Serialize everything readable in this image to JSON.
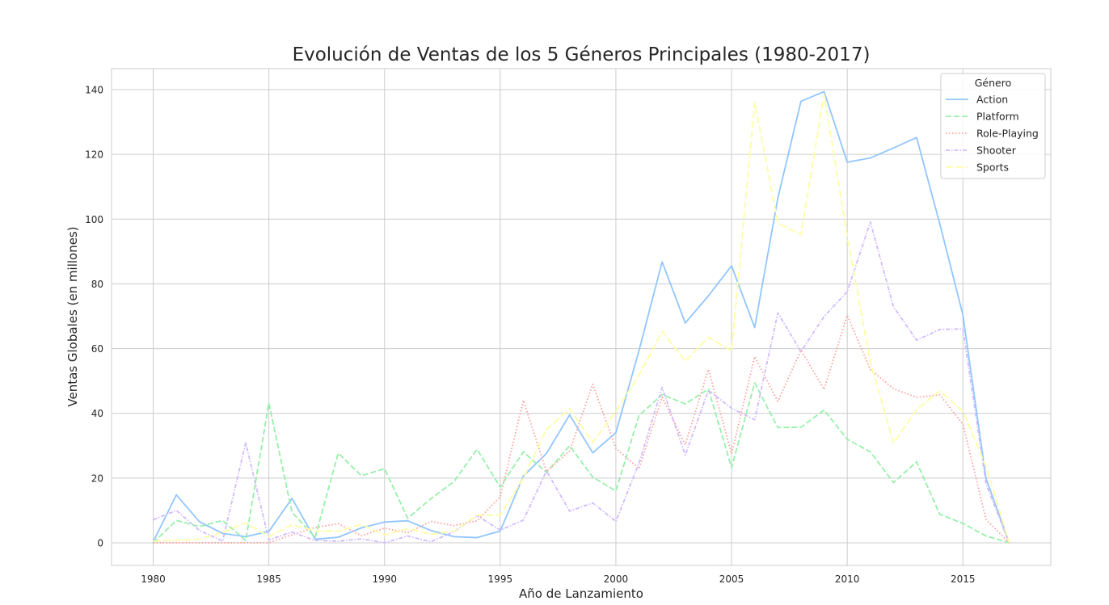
{
  "chart_data": {
    "type": "line",
    "title": "Evolución de Ventas de los 5 Géneros Principales (1980-2017)",
    "xlabel": "Año de Lanzamiento",
    "ylabel": "Ventas Globales (en millones)",
    "xlim": [
      1978.2,
      2018.8
    ],
    "ylim": [
      -7,
      146.5
    ],
    "xticks": [
      1980,
      1985,
      1990,
      1995,
      2000,
      2005,
      2010,
      2015
    ],
    "yticks": [
      0,
      20,
      40,
      60,
      80,
      100,
      120,
      140
    ],
    "grid": true,
    "legend": {
      "title": "Género",
      "placement": "top-right"
    },
    "x": [
      1980,
      1981,
      1982,
      1983,
      1984,
      1985,
      1986,
      1987,
      1988,
      1989,
      1990,
      1991,
      1992,
      1993,
      1994,
      1995,
      1996,
      1997,
      1998,
      1999,
      2000,
      2001,
      2002,
      2003,
      2004,
      2005,
      2006,
      2007,
      2008,
      2009,
      2010,
      2011,
      2012,
      2013,
      2014,
      2015,
      2016,
      2017
    ],
    "series": [
      {
        "name": "Action",
        "color": "#92c6ff",
        "dash": "solid",
        "values": [
          0.3,
          14.8,
          6.5,
          2.9,
          1.9,
          3.5,
          13.7,
          1.1,
          1.7,
          4.6,
          6.4,
          6.8,
          3.8,
          1.9,
          1.6,
          3.6,
          20.6,
          27.6,
          39.5,
          27.8,
          34.0,
          59.4,
          86.8,
          67.9,
          76.3,
          85.6,
          66.5,
          106.5,
          136.4,
          139.4,
          117.6,
          118.9,
          122.0,
          125.2,
          98.6,
          70.4,
          19.9,
          0.0
        ]
      },
      {
        "name": "Platform",
        "color": "#97f0aa",
        "dash": "dashed",
        "values": [
          0.0,
          6.9,
          5.0,
          6.9,
          0.7,
          43.2,
          9.4,
          1.7,
          27.7,
          20.7,
          22.9,
          7.6,
          13.6,
          18.9,
          28.9,
          17.2,
          28.1,
          21.7,
          30.0,
          20.3,
          16.0,
          39.3,
          45.8,
          42.9,
          47.5,
          23.2,
          49.4,
          35.6,
          35.7,
          41.0,
          32.0,
          28.1,
          18.6,
          25.0,
          8.8,
          6.0,
          2.1,
          0.0
        ]
      },
      {
        "name": "Role-Playing",
        "color": "#ff9f9a",
        "dash": "dotted",
        "values": [
          0.0,
          0.0,
          0.0,
          0.0,
          0.0,
          0.0,
          2.5,
          4.7,
          5.9,
          2.2,
          4.5,
          3.1,
          6.6,
          5.3,
          6.8,
          14.2,
          44.0,
          22.0,
          28.4,
          49.0,
          29.2,
          22.9,
          45.0,
          30.3,
          53.6,
          27.5,
          57.5,
          43.7,
          59.5,
          47.4,
          70.3,
          53.5,
          47.6,
          44.9,
          45.7,
          36.7,
          7.2,
          0.0
        ]
      },
      {
        "name": "Shooter",
        "color": "#d0bbff",
        "dash": "dashdot",
        "values": [
          7.1,
          10.0,
          3.8,
          0.5,
          30.9,
          0.9,
          3.3,
          0.7,
          0.5,
          1.2,
          0.0,
          2.1,
          0.3,
          3.4,
          8.4,
          3.9,
          7.0,
          22.2,
          9.8,
          12.3,
          6.6,
          24.6,
          48.0,
          27.1,
          47.1,
          41.6,
          38.0,
          71.0,
          59.1,
          69.9,
          77.6,
          99.1,
          72.9,
          62.6,
          65.9,
          66.1,
          18.2,
          0.0
        ]
      },
      {
        "name": "Sports",
        "color": "#fffea3",
        "dash": "loosedash",
        "values": [
          0.5,
          0.8,
          1.1,
          3.2,
          6.2,
          1.9,
          5.6,
          3.7,
          3.6,
          5.7,
          2.4,
          4.4,
          2.6,
          3.6,
          8.5,
          8.5,
          19.9,
          35.0,
          41.4,
          31.0,
          40.6,
          51.8,
          65.3,
          56.1,
          63.5,
          59.3,
          136.2,
          98.8,
          95.2,
          138.5,
          94.6,
          55.9,
          30.8,
          41.2,
          46.9,
          40.7,
          23.5,
          0.1
        ]
      }
    ]
  }
}
